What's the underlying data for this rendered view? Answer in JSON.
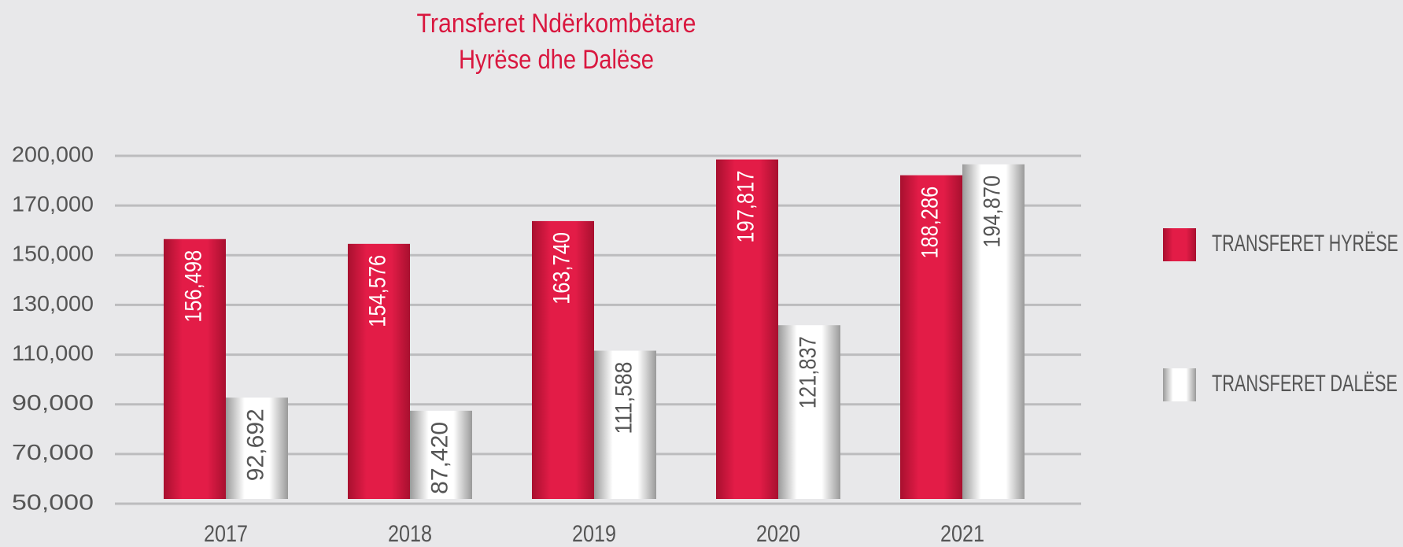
{
  "chart_data": {
    "type": "bar",
    "title": [
      "Transferet Ndërkombëtare",
      "Hyrëse dhe Dalëse"
    ],
    "categories": [
      "2017",
      "2018",
      "2019",
      "2020",
      "2021"
    ],
    "series": [
      {
        "name": "TRANSFERET HYRËSE",
        "color": "#e31c47",
        "values": [
          156498,
          154576,
          163740,
          197817,
          188286
        ],
        "value_labels": [
          "156,498",
          "154,576",
          "163,740",
          "197,817",
          "188,286"
        ]
      },
      {
        "name": "TRANSFERET DALËSE",
        "color": "#ffffff",
        "values": [
          92692,
          87420,
          111588,
          121837,
          194870
        ],
        "value_labels": [
          "92,692",
          "87,420",
          "111,588",
          "121,837",
          "194,870"
        ]
      }
    ],
    "ylim": [
      50000,
      200000
    ],
    "yticks": [
      {
        "value": 50000,
        "label": "50,000"
      },
      {
        "value": 70000,
        "label": "70,000"
      },
      {
        "value": 90000,
        "label": "90,000"
      },
      {
        "value": 110000,
        "label": "110,000"
      },
      {
        "value": 130000,
        "label": "130,000"
      },
      {
        "value": 150000,
        "label": "150,000"
      },
      {
        "value": 170000,
        "label": "170,000"
      },
      {
        "value": 200000,
        "label": "200,000"
      }
    ],
    "grid": true,
    "legend": "right"
  }
}
